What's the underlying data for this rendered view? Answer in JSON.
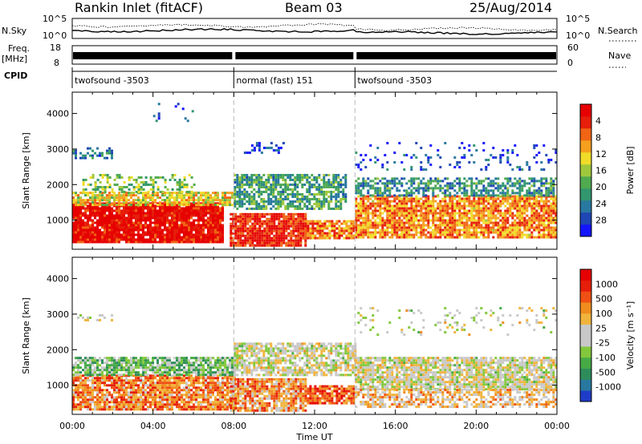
{
  "header": {
    "station": "Rankin Inlet (fitACF)",
    "beam": "Beam 03",
    "date": "25/Aug/2014"
  },
  "panels": {
    "nsky_label": "N.Sky",
    "nsearch_label": "N.Search",
    "freq_label_top": "Freq.",
    "freq_label_unit": "[MHz]",
    "nave_label": "Nave",
    "cpid_label": "CPID",
    "nsky_ticks": [
      "10^5",
      "10^0"
    ],
    "nsearch_ticks": [
      "10^5",
      "10^0"
    ],
    "freq_ticks": [
      "18",
      "8"
    ],
    "nave_ticks": [
      "60",
      "0"
    ],
    "cpid_segments": [
      {
        "label": "twofsound  -3503",
        "start": 0.0,
        "end": 8.0
      },
      {
        "label": "normal (fast) 151",
        "start": 8.0,
        "end": 14.0
      },
      {
        "label": "twofsound  -3503",
        "start": 14.0,
        "end": 24.0
      }
    ]
  },
  "axes": {
    "ylabel": "Slant Range [km]",
    "xlabel": "Time UT",
    "x_ticks": [
      "00:00",
      "04:00",
      "08:00",
      "12:00",
      "16:00",
      "20:00",
      "00:00"
    ],
    "y_ticks": [
      "1000",
      "2000",
      "3000",
      "4000"
    ]
  },
  "chart_data": [
    {
      "type": "heatmap",
      "name": "power",
      "xlabel": "Time UT",
      "ylabel": "Slant Range [km]",
      "xlim": [
        0,
        24
      ],
      "ylim": [
        180,
        4600
      ],
      "colorbar": {
        "label": "Power [dB]",
        "ticks": [
          "4",
          "8",
          "12",
          "16",
          "20",
          "24",
          "28"
        ],
        "colors": [
          "#1414ff",
          "#1e46b4",
          "#2878a0",
          "#32966e",
          "#50aa50",
          "#a0c83c",
          "#f0dc28",
          "#f5a01e",
          "#f06414",
          "#e61e0a",
          "#e60000"
        ]
      },
      "regions": [
        {
          "t0": 0.0,
          "t1": 7.5,
          "r0": 350,
          "r1": 1500,
          "level": 0.95,
          "density": 0.95
        },
        {
          "t0": 0.0,
          "t1": 8.0,
          "r0": 1400,
          "r1": 1800,
          "level": 0.6,
          "density": 0.8
        },
        {
          "t0": 0.5,
          "t1": 6.0,
          "r0": 1800,
          "r1": 2300,
          "level": 0.45,
          "density": 0.35
        },
        {
          "t0": 0.0,
          "t1": 2.0,
          "r0": 2750,
          "r1": 3050,
          "level": 0.25,
          "density": 0.5
        },
        {
          "t0": 7.8,
          "t1": 11.5,
          "r0": 300,
          "r1": 1200,
          "level": 0.9,
          "density": 0.9
        },
        {
          "t0": 8.0,
          "t1": 13.5,
          "r0": 1300,
          "r1": 2300,
          "level": 0.35,
          "density": 0.7
        },
        {
          "t0": 8.5,
          "t1": 10.5,
          "r0": 2900,
          "r1": 3200,
          "level": 0.1,
          "density": 0.4
        },
        {
          "t0": 11.5,
          "t1": 14.0,
          "r0": 500,
          "r1": 1000,
          "level": 0.75,
          "density": 0.85
        },
        {
          "t0": 14.0,
          "t1": 24.0,
          "r0": 500,
          "r1": 1700,
          "level": 0.72,
          "density": 0.85
        },
        {
          "t0": 14.0,
          "t1": 24.0,
          "r0": 1700,
          "r1": 2200,
          "level": 0.3,
          "density": 0.6
        },
        {
          "t0": 14.0,
          "t1": 24.0,
          "r0": 2400,
          "r1": 3200,
          "level": 0.12,
          "density": 0.12
        },
        {
          "t0": 4.0,
          "t1": 6.0,
          "r0": 3800,
          "r1": 4300,
          "level": 0.15,
          "density": 0.08
        }
      ]
    },
    {
      "type": "heatmap",
      "name": "velocity",
      "xlabel": "Time UT",
      "ylabel": "Slant Range [km]",
      "xlim": [
        0,
        24
      ],
      "ylim": [
        180,
        4600
      ],
      "colorbar": {
        "label": "Velocity [m s⁻¹]",
        "ticks": [
          "1000",
          "500",
          "100",
          "25",
          "-25",
          "-100",
          "-500",
          "-1000"
        ],
        "colors": [
          "#1e3cc8",
          "#2878a0",
          "#2d8c5a",
          "#46aa46",
          "#82c83c",
          "#c8c8c8",
          "#c8c8c8",
          "#f0b43c",
          "#f08c1e",
          "#f05014",
          "#e61e0a",
          "#e60000"
        ]
      },
      "regions": [
        {
          "t0": 0.0,
          "t1": 8.0,
          "r0": 350,
          "r1": 1300,
          "level": 0.72,
          "density": 0.85
        },
        {
          "t0": 0.0,
          "t1": 8.0,
          "r0": 1300,
          "r1": 1800,
          "level": 0.35,
          "density": 0.8
        },
        {
          "t0": 7.8,
          "t1": 11.5,
          "r0": 300,
          "r1": 1200,
          "level": 0.7,
          "density": 0.85
        },
        {
          "t0": 8.0,
          "t1": 14.0,
          "r0": 1300,
          "r1": 2200,
          "level": 0.5,
          "density": 0.75
        },
        {
          "t0": 11.5,
          "t1": 14.0,
          "r0": 500,
          "r1": 1000,
          "level": 0.8,
          "density": 0.85
        },
        {
          "t0": 14.0,
          "t1": 24.0,
          "r0": 900,
          "r1": 1800,
          "level": 0.5,
          "density": 0.85
        },
        {
          "t0": 14.0,
          "t1": 24.0,
          "r0": 400,
          "r1": 900,
          "level": 0.62,
          "density": 0.6
        },
        {
          "t0": 14.0,
          "t1": 24.0,
          "r0": 2400,
          "r1": 3200,
          "level": 0.5,
          "density": 0.12
        },
        {
          "t0": 0.0,
          "t1": 2.0,
          "r0": 2800,
          "r1": 3000,
          "level": 0.5,
          "density": 0.4
        }
      ]
    }
  ]
}
